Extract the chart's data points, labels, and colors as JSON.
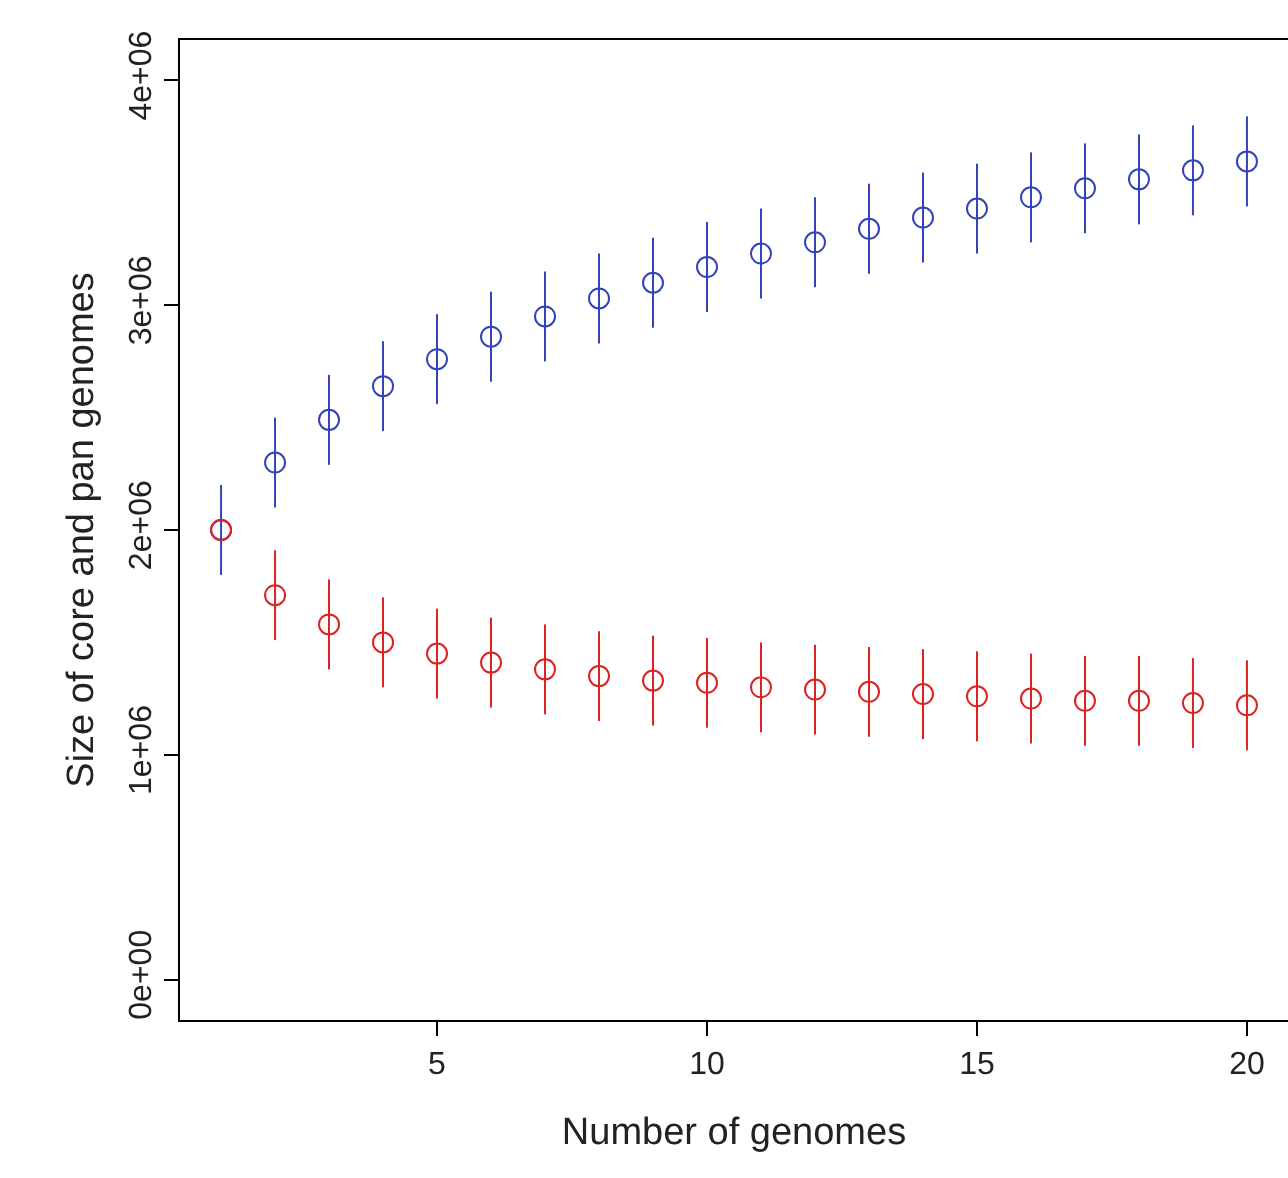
{
  "chart_data": {
    "type": "scatter",
    "xlabel": "Number of genomes",
    "ylabel": "Size of core and pan genomes",
    "x": [
      1,
      2,
      3,
      4,
      5,
      6,
      7,
      8,
      9,
      10,
      11,
      12,
      13,
      14,
      15,
      16,
      17,
      18,
      19,
      20
    ],
    "series": [
      {
        "color": "#3344bb",
        "values": [
          2000000,
          2300000,
          2490000,
          2640000,
          2760000,
          2860000,
          2950000,
          3030000,
          3100000,
          3170000,
          3230000,
          3280000,
          3340000,
          3390000,
          3430000,
          3480000,
          3520000,
          3560000,
          3600000,
          3640000
        ],
        "errors": [
          200000,
          200000,
          200000,
          200000,
          200000,
          200000,
          200000,
          200000,
          200000,
          200000,
          200000,
          200000,
          200000,
          200000,
          200000,
          200000,
          200000,
          200000,
          200000,
          200000
        ]
      },
      {
        "color": "#dd2222",
        "values": [
          2000000,
          1710000,
          1580000,
          1500000,
          1450000,
          1410000,
          1380000,
          1350000,
          1330000,
          1320000,
          1300000,
          1290000,
          1280000,
          1270000,
          1260000,
          1250000,
          1240000,
          1240000,
          1230000,
          1220000
        ],
        "errors": [
          null,
          200000,
          200000,
          200000,
          200000,
          200000,
          200000,
          200000,
          200000,
          200000,
          200000,
          200000,
          200000,
          200000,
          200000,
          200000,
          200000,
          200000,
          200000,
          200000
        ]
      }
    ],
    "xlim": [
      0.24,
      20.76
    ],
    "xticks": [
      5,
      10,
      15,
      20
    ],
    "ylim": [
      -180000,
      4180000
    ],
    "yticks": [
      {
        "value": 0,
        "label": "0e+00"
      },
      {
        "value": 1000000,
        "label": "1e+06"
      },
      {
        "value": 2000000,
        "label": "2e+06"
      },
      {
        "value": 3000000,
        "label": "3e+06"
      },
      {
        "value": 4000000,
        "label": "4e+06"
      }
    ],
    "marker": "circle",
    "grid": false
  }
}
